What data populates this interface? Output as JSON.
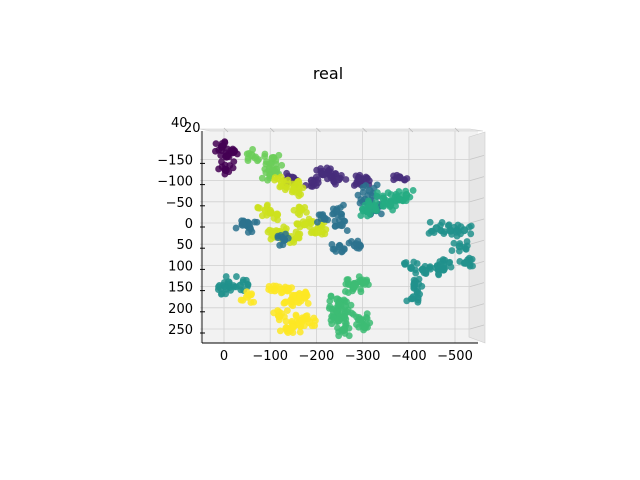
{
  "chart_data": {
    "type": "scatter",
    "projection": "3d",
    "title": "real",
    "xlabel": "",
    "ylabel": "",
    "zlabel": "",
    "x_ticks": [
      0,
      -100,
      -200,
      -300,
      -400,
      -500
    ],
    "x_tick_labels": [
      "0",
      "−100",
      "−200",
      "−300",
      "−400",
      "−500"
    ],
    "y_ticks": [
      -150,
      -100,
      -50,
      0,
      50,
      100,
      150,
      200,
      250
    ],
    "y_tick_labels": [
      "−150",
      "−100",
      "−50",
      "0",
      "50",
      "100",
      "150",
      "200",
      "250"
    ],
    "z_tick_labels": [
      "40",
      "20"
    ],
    "xlim": [
      50,
      -550
    ],
    "ylim": [
      -180,
      265
    ],
    "grid": true,
    "colormap": "viridis",
    "clusters": [
      {
        "color": "#440154",
        "points": [
          [
            4,
            -180
          ],
          [
            -6,
            -158
          ],
          [
            -20,
            -167
          ],
          [
            -4,
            -125
          ]
        ]
      },
      {
        "color": "#6cce59",
        "points": [
          [
            -60,
            -160
          ],
          [
            -105,
            -153
          ],
          [
            -113,
            -126
          ],
          [
            -100,
            -113
          ]
        ]
      },
      {
        "color": "#472d7b",
        "points": [
          [
            -150,
            -105
          ],
          [
            -190,
            -100
          ],
          [
            -225,
            -118
          ],
          [
            -248,
            -103
          ],
          [
            -215,
            -115
          ],
          [
            -295,
            -95
          ],
          [
            -300,
            -103
          ],
          [
            -380,
            -108
          ]
        ]
      },
      {
        "color": "#cde11d",
        "points": [
          [
            -125,
            -97
          ],
          [
            -160,
            -86
          ],
          [
            -150,
            -78
          ],
          [
            -90,
            -30
          ],
          [
            -115,
            -20
          ],
          [
            -165,
            -30
          ],
          [
            -175,
            3
          ],
          [
            -120,
            21
          ],
          [
            -160,
            33
          ],
          [
            -205,
            10
          ],
          [
            -205,
            21
          ],
          [
            -108,
            26
          ]
        ]
      },
      {
        "color": "#2c728e",
        "points": [
          [
            -243,
            -28
          ],
          [
            -218,
            -10
          ],
          [
            -255,
            5
          ],
          [
            -305,
            -55
          ],
          [
            -315,
            -76
          ],
          [
            -330,
            -30
          ],
          [
            -130,
            40
          ],
          [
            -55,
            10
          ],
          [
            -250,
            55
          ],
          [
            -283,
            53
          ],
          [
            -40,
            4
          ]
        ]
      },
      {
        "color": "#25ac82",
        "points": [
          [
            -345,
            -58
          ],
          [
            -380,
            -55
          ],
          [
            -395,
            -66
          ],
          [
            -310,
            -28
          ],
          [
            -360,
            -43
          ],
          [
            -315,
            -40
          ]
        ]
      },
      {
        "color": "#21918c",
        "points": [
          [
            -10,
            140
          ],
          [
            -5,
            155
          ],
          [
            -35,
            148
          ],
          [
            -460,
            12
          ],
          [
            -490,
            18
          ],
          [
            -520,
            17
          ],
          [
            -510,
            55
          ],
          [
            -523,
            94
          ],
          [
            -475,
            100
          ],
          [
            -475,
            110
          ],
          [
            -430,
            110
          ],
          [
            -405,
            106
          ],
          [
            -412,
            146
          ],
          [
            -410,
            175
          ]
        ]
      },
      {
        "color": "#3dbc74",
        "points": [
          [
            -245,
            180
          ],
          [
            -262,
            196
          ],
          [
            -245,
            210
          ],
          [
            -260,
            222
          ],
          [
            -248,
            230
          ],
          [
            -280,
            152
          ],
          [
            -301,
            140
          ],
          [
            -283,
            147
          ],
          [
            -295,
            228
          ],
          [
            -305,
            246
          ],
          [
            -260,
            252
          ]
        ]
      },
      {
        "color": "#fde725",
        "points": [
          [
            -110,
            159
          ],
          [
            -137,
            158
          ],
          [
            -160,
            176
          ],
          [
            -175,
            176
          ],
          [
            -145,
            183
          ],
          [
            -120,
            220
          ],
          [
            -165,
            231
          ],
          [
            -150,
            244
          ],
          [
            -135,
            248
          ],
          [
            -185,
            234
          ],
          [
            -50,
            174
          ]
        ]
      }
    ]
  }
}
